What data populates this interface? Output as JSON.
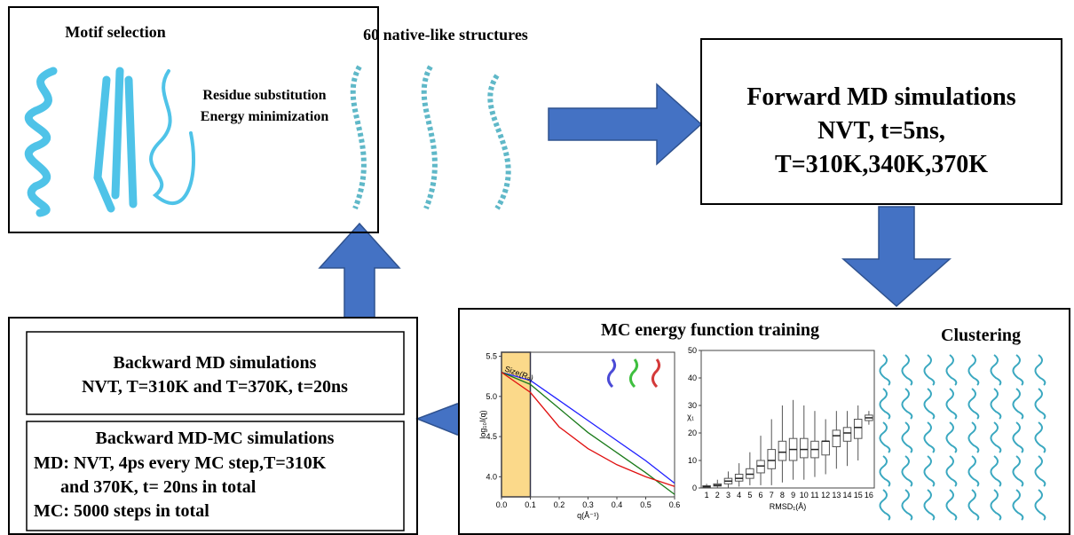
{
  "top_box": {
    "motif_title": "Motif selection",
    "structures_title": "60 native-like structures",
    "step1": "Residue substitution",
    "step2": "Energy minimization"
  },
  "forward_box": {
    "lines": [
      "Forward MD simulations",
      "NVT, t=5ns,",
      "T=310K,340K,370K"
    ]
  },
  "training_box": {
    "title": "MC energy function training",
    "clustering_title": "Clustering",
    "saxs_chart": {
      "type": "line",
      "y_label": "log₁₀I(q)",
      "x_label": "q(Å⁻¹)",
      "annotation": "Size(R₉)",
      "highlight": [
        0,
        0.1
      ],
      "x": [
        0,
        0.1,
        0.2,
        0.3,
        0.4,
        0.5,
        0.6
      ],
      "series": [
        {
          "color": "#1f1fff",
          "values": [
            5.3,
            5.2,
            4.95,
            4.7,
            4.45,
            4.2,
            3.92
          ]
        },
        {
          "color": "#1a7a1a",
          "values": [
            5.3,
            5.15,
            4.85,
            4.55,
            4.3,
            4.05,
            3.78
          ]
        },
        {
          "color": "#e01010",
          "values": [
            5.3,
            5.05,
            4.62,
            4.35,
            4.15,
            4.0,
            3.88
          ]
        }
      ],
      "xlim": [
        0,
        0.6
      ],
      "ylim": [
        3.75,
        5.55
      ],
      "xticks": [
        {
          "value": 0,
          "label": "0.0"
        },
        0.1,
        0.2,
        0.3,
        0.4,
        0.5,
        0.6
      ],
      "yticks": [
        {
          "value": 4,
          "label": "4.0"
        },
        4.5,
        {
          "value": 5,
          "label": "5.0"
        },
        5.5
      ]
    },
    "box_chart": {
      "type": "box",
      "y_label": "χ₁",
      "x_label": "RMSD₁(Å)",
      "categories": [
        "1",
        "2",
        "3",
        "4",
        "5",
        "6",
        "7",
        "8",
        "9",
        "10",
        "11",
        "12",
        "13",
        "14",
        "15",
        "16"
      ],
      "median": [
        0.5,
        1,
        2.5,
        3.5,
        5,
        8,
        10,
        13,
        14,
        14,
        14,
        17,
        19,
        20,
        22,
        25.5
      ],
      "q1": [
        0.3,
        0.7,
        1.5,
        2.5,
        3.5,
        5.5,
        7,
        10,
        10,
        11,
        11,
        12,
        15,
        17,
        18,
        24.5
      ],
      "q3": [
        0.8,
        1.5,
        3.5,
        5,
        7,
        10,
        14,
        17,
        18,
        18,
        17,
        17,
        21,
        22,
        25,
        26.5
      ],
      "low": [
        0,
        0,
        0,
        0.5,
        1,
        1,
        1,
        2,
        3,
        3,
        4,
        5,
        7,
        8,
        10,
        23
      ],
      "high": [
        1.5,
        3,
        6,
        9,
        13,
        19,
        25,
        30,
        32,
        30,
        28,
        25,
        28,
        28,
        30,
        28
      ],
      "ylim": [
        0,
        50
      ],
      "yticks": [
        0,
        10,
        20,
        30,
        40,
        50
      ]
    }
  },
  "backward_box": {
    "md_title": "Backward MD simulations",
    "md_detail": "NVT, T=310K and T=370K, t=20ns",
    "mdmc_title": "Backward MD-MC simulations",
    "mdmc_lines": [
      "MD: NVT, 4ps every MC step,T=310K",
      "and 370K, t= 20ns in total",
      "MC: 5000 steps in total"
    ]
  }
}
